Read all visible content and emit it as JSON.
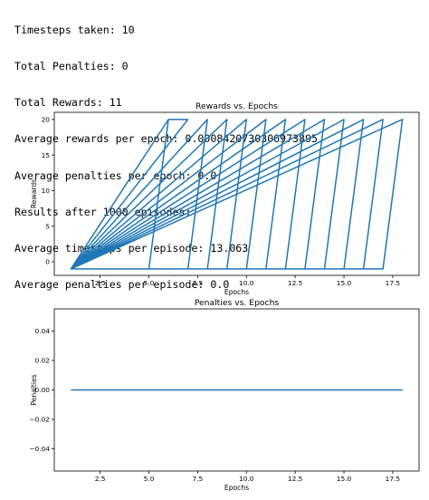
{
  "console_output": [
    "Timesteps taken: 10",
    "Total Penalties: 0",
    "Total Rewards: 11",
    "Average rewards per epoch: 0.0008420730306973895",
    "Average penalties per epoch: 0.0",
    "Results after 1000 episodes:",
    "Average timesteps per episode: 13.063",
    "Average penalties per episode: 0.0"
  ],
  "colors": {
    "series": "#1f77b4",
    "axes": "#000000",
    "background": "#ffffff"
  },
  "chart_data": [
    {
      "type": "line",
      "title": "Rewards vs. Epochs",
      "xlabel": "Epochs",
      "ylabel": "Rewards",
      "xlim": [
        0.15,
        18.85
      ],
      "ylim": [
        -1.9,
        21
      ],
      "xticks": [
        2.5,
        5.0,
        7.5,
        10.0,
        12.5,
        15.0,
        17.5
      ],
      "xtick_labels": [
        "2.5",
        "5.0",
        "7.5",
        "10.0",
        "12.5",
        "15.0",
        "17.5"
      ],
      "yticks": [
        0,
        5,
        10,
        15,
        20
      ],
      "ytick_labels": [
        "0",
        "5",
        "10",
        "15",
        "20"
      ],
      "grid": false,
      "legend": false,
      "series": [
        {
          "x": [
            1,
            6,
            1,
            5,
            6,
            7,
            1,
            7,
            8,
            1,
            8,
            9,
            1,
            9,
            10,
            1,
            10,
            11,
            1,
            11,
            12,
            1,
            12,
            13,
            1,
            13,
            14,
            1,
            14,
            15,
            1,
            15,
            16,
            1,
            16,
            17,
            1,
            17,
            18,
            1
          ],
          "y": [
            -1,
            20,
            -1,
            -1,
            20,
            20,
            -1,
            -1,
            20,
            -1,
            -1,
            20,
            -1,
            -1,
            20,
            -1,
            -1,
            20,
            -1,
            -1,
            20,
            -1,
            -1,
            20,
            -1,
            -1,
            20,
            -1,
            -1,
            20,
            -1,
            -1,
            20,
            -1,
            -1,
            20,
            -1,
            -1,
            20,
            -1
          ]
        }
      ]
    },
    {
      "type": "line",
      "title": "Penalties vs. Epochs",
      "xlabel": "Epochs",
      "ylabel": "Penalties",
      "xlim": [
        0.15,
        18.85
      ],
      "ylim": [
        -0.055,
        0.055
      ],
      "xticks": [
        2.5,
        5.0,
        7.5,
        10.0,
        12.5,
        15.0,
        17.5
      ],
      "xtick_labels": [
        "2.5",
        "5.0",
        "7.5",
        "10.0",
        "12.5",
        "15.0",
        "17.5"
      ],
      "yticks": [
        0.04,
        0.02,
        0.0,
        -0.02,
        -0.04
      ],
      "ytick_labels": [
        "0.04",
        "0.02",
        "0.00",
        "−0.02",
        "−0.04"
      ],
      "grid": false,
      "legend": false,
      "series": [
        {
          "x": [
            1,
            18
          ],
          "y": [
            0,
            0
          ]
        }
      ]
    }
  ]
}
